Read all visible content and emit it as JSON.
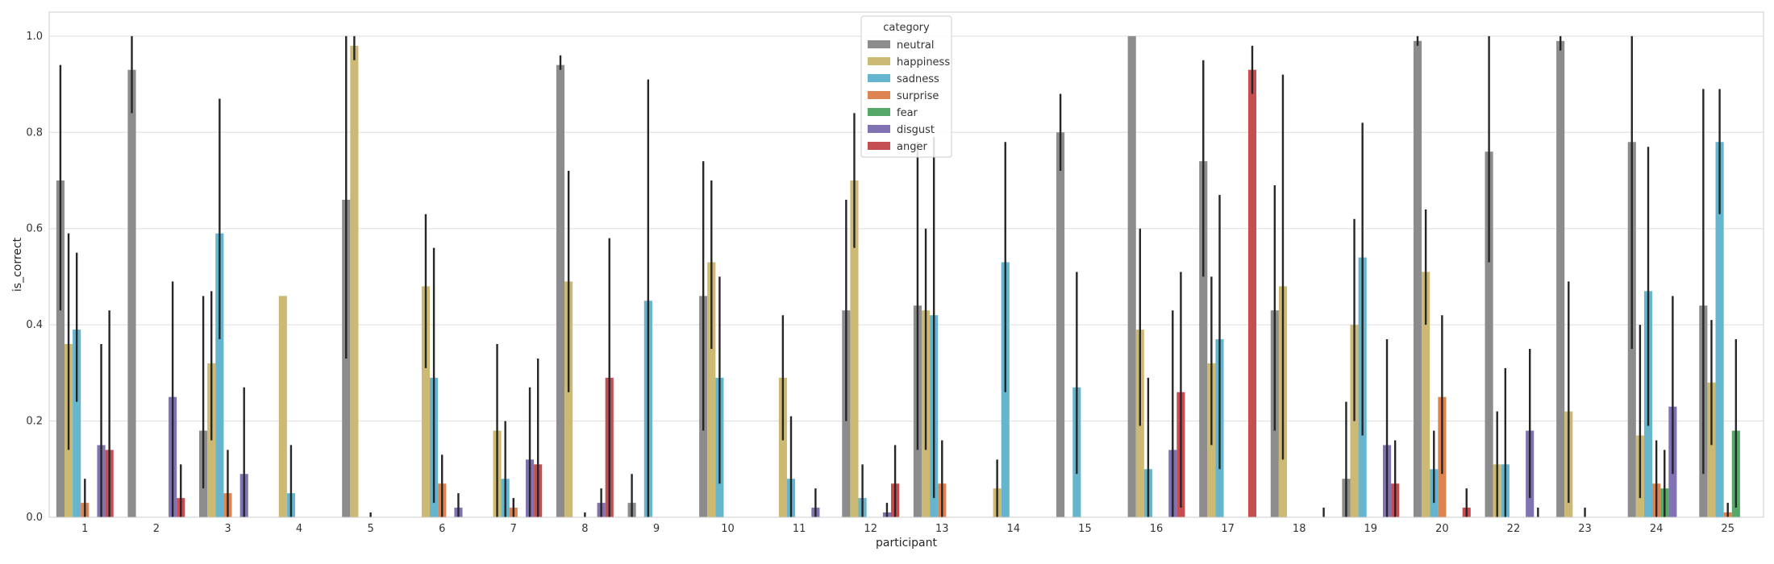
{
  "chart_data": {
    "type": "bar",
    "xlabel": "participant",
    "ylabel": "is_correct",
    "ylim": [
      0,
      1.05
    ],
    "yticks": [
      "0.0",
      "0.2",
      "0.4",
      "0.6",
      "0.8",
      "1.0"
    ],
    "grid": true,
    "legend": {
      "title": "category",
      "placement": "top-center"
    },
    "categories": [
      "1",
      "2",
      "3",
      "4",
      "5",
      "6",
      "7",
      "8",
      "9",
      "10",
      "11",
      "12",
      "13",
      "14",
      "15",
      "16",
      "17",
      "18",
      "19",
      "20",
      "22",
      "23",
      "24",
      "25"
    ],
    "series": [
      {
        "name": "neutral",
        "color": "#8c8c8c",
        "values": [
          0.7,
          0.93,
          0.18,
          0,
          0.66,
          0,
          0,
          0.94,
          0.03,
          0.46,
          0,
          0.43,
          0.44,
          0,
          0.8,
          1.0,
          0.74,
          0.43,
          0.08,
          0.99,
          0.76,
          0.99,
          0.78,
          0.44
        ],
        "ci": [
          [
            0.43,
            0.94
          ],
          [
            0.84,
            1.0
          ],
          [
            0.06,
            0.46
          ],
          null,
          [
            0.33,
            1.0
          ],
          null,
          null,
          [
            0.93,
            0.96
          ],
          [
            0,
            0.09
          ],
          [
            0.18,
            0.74
          ],
          null,
          [
            0.2,
            0.66
          ],
          [
            0.14,
            0.78
          ],
          null,
          [
            0.72,
            0.88
          ],
          [
            1.0,
            1.0
          ],
          [
            0.5,
            0.95
          ],
          [
            0.18,
            0.69
          ],
          [
            0,
            0.24
          ],
          [
            0.98,
            1.0
          ],
          [
            0.53,
            1.0
          ],
          [
            0.97,
            1.0
          ],
          [
            0.35,
            1.0
          ],
          [
            0.09,
            0.89
          ]
        ]
      },
      {
        "name": "happiness",
        "color": "#ccb974",
        "values": [
          0.36,
          0,
          0.32,
          0.46,
          0.98,
          0.48,
          0.18,
          0.49,
          0,
          0.53,
          0.29,
          0.7,
          0.43,
          0.06,
          0,
          0.39,
          0.32,
          0.48,
          0.4,
          0.51,
          0.11,
          0.22,
          0.17,
          0.28
        ],
        "ci": [
          [
            0.14,
            0.59
          ],
          null,
          [
            0.16,
            0.47
          ],
          null,
          [
            0.95,
            1.0
          ],
          [
            0.31,
            0.63
          ],
          [
            0,
            0.36
          ],
          [
            0.26,
            0.72
          ],
          null,
          [
            0.35,
            0.7
          ],
          [
            0.16,
            0.42
          ],
          [
            0.56,
            0.84
          ],
          [
            0.14,
            0.6
          ],
          [
            0,
            0.12
          ],
          null,
          [
            0.19,
            0.6
          ],
          [
            0.15,
            0.5
          ],
          [
            0.12,
            0.92
          ],
          [
            0.2,
            0.62
          ],
          [
            0.4,
            0.64
          ],
          [
            0,
            0.22
          ],
          [
            0.03,
            0.49
          ],
          [
            0.04,
            0.4
          ],
          [
            0.15,
            0.41
          ]
        ]
      },
      {
        "name": "sadness",
        "color": "#64b5cd",
        "values": [
          0.39,
          0,
          0.59,
          0.05,
          0,
          0.29,
          0.08,
          0,
          0.45,
          0.29,
          0.08,
          0.04,
          0.42,
          0.53,
          0.27,
          0.1,
          0.37,
          0,
          0.54,
          0.1,
          0.11,
          0,
          0.47,
          0.78
        ],
        "ci": [
          [
            0.24,
            0.55
          ],
          null,
          [
            0.37,
            0.87
          ],
          [
            0,
            0.15
          ],
          null,
          [
            0.03,
            0.56
          ],
          [
            0,
            0.2
          ],
          null,
          [
            0,
            0.91
          ],
          [
            0.07,
            0.5
          ],
          [
            0,
            0.21
          ],
          [
            0,
            0.11
          ],
          [
            0.04,
            0.79
          ],
          [
            0.26,
            0.78
          ],
          [
            0.09,
            0.51
          ],
          [
            0,
            0.29
          ],
          [
            0.1,
            0.67
          ],
          null,
          [
            0.17,
            0.82
          ],
          [
            0.03,
            0.18
          ],
          [
            0,
            0.31
          ],
          null,
          [
            0.19,
            0.77
          ],
          [
            0.63,
            0.89
          ]
        ]
      },
      {
        "name": "surprise",
        "color": "#dd8452",
        "values": [
          0.03,
          0,
          0.05,
          0,
          0,
          0.07,
          0.02,
          0,
          0,
          0,
          0,
          0,
          0.07,
          0,
          0,
          0,
          0,
          0,
          0,
          0.25,
          0,
          0,
          0.07,
          0.01
        ],
        "ci": [
          [
            0,
            0.08
          ],
          null,
          [
            0,
            0.14
          ],
          null,
          [
            0,
            0.01
          ],
          [
            0,
            0.13
          ],
          [
            0,
            0.04
          ],
          [
            0,
            0.01
          ],
          null,
          null,
          null,
          null,
          [
            0,
            0.16
          ],
          null,
          null,
          null,
          null,
          null,
          null,
          [
            0.09,
            0.42
          ],
          null,
          [
            0,
            0.02
          ],
          [
            0,
            0.16
          ],
          [
            0,
            0.03
          ]
        ]
      },
      {
        "name": "fear",
        "color": "#55a868",
        "values": [
          0,
          0,
          0,
          0,
          0,
          0,
          0,
          0,
          0,
          0,
          0,
          0,
          0,
          0,
          0,
          0,
          0,
          0,
          0,
          0,
          0,
          0,
          0.06,
          0.18
        ],
        "ci": [
          null,
          null,
          null,
          null,
          null,
          null,
          null,
          null,
          null,
          null,
          null,
          null,
          null,
          null,
          null,
          null,
          null,
          null,
          null,
          null,
          null,
          null,
          [
            0,
            0.14
          ],
          [
            0.02,
            0.37
          ]
        ]
      },
      {
        "name": "disgust",
        "color": "#8172b3",
        "values": [
          0.15,
          0.25,
          0.09,
          0,
          0,
          0.02,
          0.12,
          0.03,
          0,
          0,
          0.02,
          0.01,
          0,
          0,
          0,
          0.14,
          0,
          0,
          0.15,
          0,
          0.18,
          0,
          0.23,
          0
        ],
        "ci": [
          [
            0,
            0.36
          ],
          [
            0,
            0.49
          ],
          [
            0,
            0.27
          ],
          null,
          null,
          [
            0,
            0.05
          ],
          [
            0,
            0.27
          ],
          [
            0,
            0.06
          ],
          null,
          null,
          [
            0,
            0.06
          ],
          [
            0,
            0.03
          ],
          null,
          null,
          null,
          [
            0,
            0.43
          ],
          null,
          null,
          [
            0,
            0.37
          ],
          null,
          [
            0.04,
            0.35
          ],
          null,
          [
            0.09,
            0.46
          ],
          null
        ]
      },
      {
        "name": "anger",
        "color": "#c44e52",
        "values": [
          0.14,
          0.04,
          0,
          0,
          0,
          0,
          0.11,
          0.29,
          0,
          0,
          0,
          0.07,
          0,
          0,
          0,
          0.26,
          0.93,
          0,
          0.07,
          0.02,
          0,
          0,
          0,
          0
        ],
        "ci": [
          [
            0,
            0.43
          ],
          [
            0,
            0.11
          ],
          null,
          null,
          null,
          null,
          [
            0,
            0.33
          ],
          [
            0,
            0.58
          ],
          null,
          null,
          null,
          [
            0,
            0.15
          ],
          null,
          null,
          null,
          [
            0.02,
            0.51
          ],
          [
            0.88,
            0.98
          ],
          [
            0,
            0.02
          ],
          [
            0,
            0.16
          ],
          [
            0,
            0.06
          ],
          [
            0,
            0.02
          ],
          null,
          null,
          null
        ]
      }
    ]
  }
}
